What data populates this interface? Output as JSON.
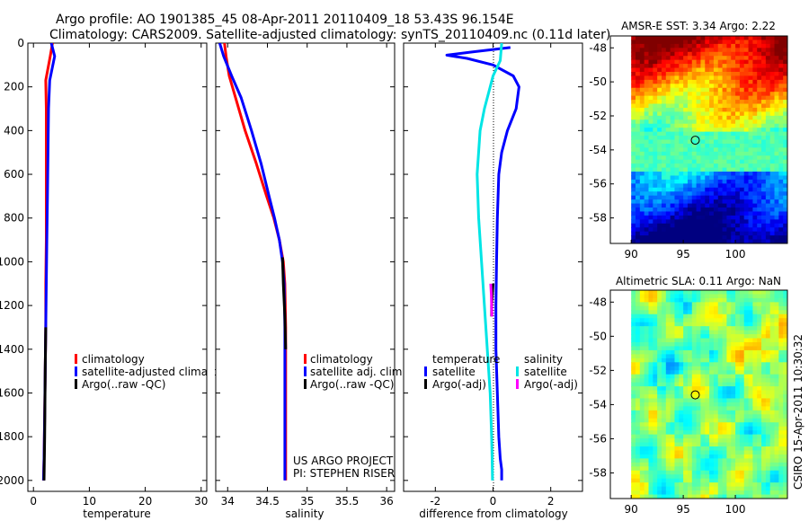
{
  "figure": {
    "title_line1": "Argo profile: AO 1901385_45 08-Apr-2011 20110409_18 53.43S 96.154E",
    "title_line2": "Climatology: CARS2009. Satellite-adjusted climatology: synTS_20110409.nc (0.11d later)",
    "project_line1": "US ARGO PROJECT",
    "project_line2": "PI: STEPHEN RISER",
    "footer": "CSIRO 15-Apr-2011 10:30:32"
  },
  "colors": {
    "climatology": "#ff0000",
    "satellite": "#0000ff",
    "argo": "#000000",
    "sat_salinity": "#00e5e5",
    "argo_salinity": "#ff00ff"
  },
  "chart_data": [
    {
      "type": "line",
      "name": "temperature",
      "xlabel": "temperature",
      "ylabel": "",
      "xlim": [
        -1,
        31
      ],
      "ylim": [
        0,
        2050
      ],
      "y_reversed": true,
      "xticks": [
        0,
        10,
        20,
        30
      ],
      "yticks": [
        0,
        200,
        400,
        600,
        800,
        1000,
        1200,
        1400,
        1600,
        1800,
        2000
      ],
      "series": [
        {
          "name": "climatology",
          "color": "#ff0000",
          "x": [
            3.4,
            3.0,
            2.2,
            2.3,
            2.3,
            2.3,
            2.3,
            2.2,
            2.2,
            2.1,
            2.0,
            1.9,
            1.8
          ],
          "y": [
            0,
            60,
            170,
            300,
            500,
            700,
            900,
            1100,
            1300,
            1500,
            1700,
            1900,
            2000
          ]
        },
        {
          "name": "satellite-adjusted climatology",
          "color": "#0000ff",
          "x": [
            3.2,
            3.8,
            2.9,
            2.7,
            2.6,
            2.5,
            2.4,
            2.3,
            2.2,
            2.1,
            2.0,
            1.9,
            1.8
          ],
          "y": [
            0,
            60,
            170,
            300,
            500,
            700,
            900,
            1100,
            1300,
            1500,
            1700,
            1900,
            2000
          ]
        },
        {
          "name": "Argo(..raw -QC)",
          "color": "#000000",
          "x": [
            2.2,
            2.1,
            2.0,
            1.9
          ],
          "y": [
            1300,
            1500,
            1800,
            2000
          ]
        }
      ],
      "legend": {
        "position": "bottom-left",
        "entries": [
          "climatology",
          "satellite-adjusted climatology",
          "Argo(..raw -QC)"
        ]
      }
    },
    {
      "type": "line",
      "name": "salinity",
      "xlabel": "salinity",
      "ylabel": "",
      "xlim": [
        33.85,
        36.1
      ],
      "ylim": [
        0,
        2050
      ],
      "y_reversed": true,
      "xticks": [
        34,
        34.5,
        35,
        35.5,
        36
      ],
      "xticklabels": [
        "34",
        "34.5",
        "35",
        "35.5",
        "36"
      ],
      "series": [
        {
          "name": "climatology",
          "color": "#ff0000",
          "x": [
            33.96,
            33.98,
            34.02,
            34.1,
            34.22,
            34.36,
            34.49,
            34.58,
            34.65,
            34.7,
            34.72,
            34.73,
            34.73,
            34.73,
            34.73,
            34.73
          ],
          "y": [
            0,
            60,
            150,
            250,
            400,
            550,
            700,
            800,
            900,
            1000,
            1100,
            1300,
            1500,
            1700,
            1900,
            2000
          ]
        },
        {
          "name": "satellite adj. clim.",
          "color": "#0000ff",
          "x": [
            33.9,
            33.95,
            34.05,
            34.17,
            34.3,
            34.42,
            34.52,
            34.59,
            34.65,
            34.69,
            34.71,
            34.72,
            34.72,
            34.72,
            34.72,
            34.72
          ],
          "y": [
            0,
            60,
            150,
            250,
            400,
            550,
            700,
            800,
            900,
            1000,
            1100,
            1300,
            1500,
            1700,
            1900,
            2000
          ]
        },
        {
          "name": "Argo(..raw -QC)",
          "color": "#000000",
          "x": [
            34.69,
            34.7,
            34.72,
            34.73
          ],
          "y": [
            980,
            1100,
            1250,
            1400
          ]
        }
      ],
      "legend": {
        "position": "bottom-right",
        "entries": [
          "climatology",
          "satellite adj. clim.",
          "Argo(..raw -QC)"
        ]
      }
    },
    {
      "type": "line",
      "name": "difference from climatology",
      "xlabel": "difference from climatology",
      "ylabel": "",
      "xlim": [
        -3.1,
        3.1
      ],
      "ylim": [
        0,
        2050
      ],
      "y_reversed": true,
      "xticks": [
        -2,
        0,
        2
      ],
      "series": [
        {
          "name": "temperature satellite",
          "color": "#0000ff",
          "x": [
            0.6,
            -0.7,
            -1.6,
            -0.9,
            0.0,
            0.7,
            0.9,
            0.8,
            0.5,
            0.3,
            0.2,
            0.15,
            0.12,
            0.1,
            0.1,
            0.15,
            0.2,
            0.25,
            0.3,
            0.3
          ],
          "y": [
            20,
            40,
            55,
            70,
            100,
            150,
            200,
            300,
            400,
            500,
            600,
            800,
            1000,
            1200,
            1400,
            1600,
            1800,
            1900,
            1950,
            2000
          ]
        },
        {
          "name": "salinity satellite",
          "color": "#00e5e5",
          "x": [
            0.3,
            0.25,
            0.0,
            -0.1,
            -0.3,
            -0.45,
            -0.55,
            -0.5,
            -0.4,
            -0.3,
            -0.2,
            -0.15,
            -0.1,
            -0.05,
            -0.03,
            -0.02
          ],
          "y": [
            0,
            80,
            150,
            200,
            300,
            400,
            600,
            800,
            1000,
            1200,
            1400,
            1500,
            1600,
            1800,
            1900,
            2000
          ]
        },
        {
          "name": "temperature Argo(-adj)",
          "color": "#000000",
          "x": [
            0.0,
            -0.05,
            -0.05
          ],
          "y": [
            1100,
            1200,
            1250
          ]
        },
        {
          "name": "salinity Argo(-adj)",
          "color": "#ff00ff",
          "x": [
            -0.08,
            -0.06,
            -0.04
          ],
          "y": [
            1100,
            1150,
            1250
          ]
        }
      ],
      "legend": {
        "position": "bottom",
        "headers": [
          "temperature",
          "salinity"
        ],
        "entries": [
          "satellite",
          "Argo(-adj)",
          "satellite",
          "Argo(-adj)"
        ]
      }
    },
    {
      "type": "heatmap",
      "name": "AMSR-E SST",
      "title": "AMSR-E SST: 3.34 Argo: 2.22",
      "xlim": [
        88,
        105
      ],
      "ylim": [
        -59.5,
        -47.3
      ],
      "xticks": [
        90,
        95,
        100
      ],
      "yticks": [
        -48,
        -50,
        -52,
        -54,
        -56,
        -58
      ],
      "data_xlim": [
        90,
        105
      ],
      "marker": {
        "lon": 96.154,
        "lat": -53.43
      }
    },
    {
      "type": "heatmap",
      "name": "Altimetric SLA",
      "title": "Altimetric SLA: 0.11 Argo: NaN",
      "xlim": [
        88,
        105
      ],
      "ylim": [
        -59.5,
        -47.3
      ],
      "xticks": [
        90,
        95,
        100
      ],
      "yticks": [
        -48,
        -50,
        -52,
        -54,
        -56,
        -58
      ],
      "data_xlim": [
        90,
        105
      ],
      "marker": {
        "lon": 96.154,
        "lat": -53.43
      }
    }
  ]
}
